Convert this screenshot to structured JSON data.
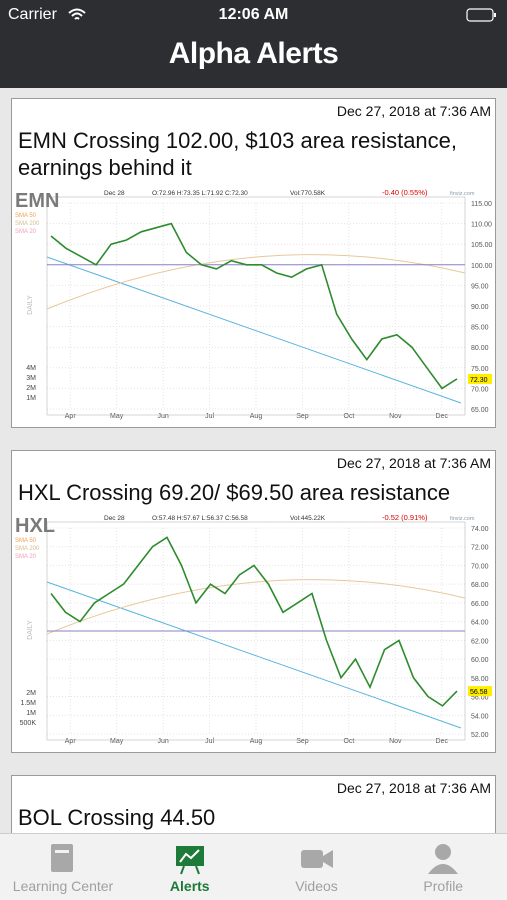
{
  "status_bar": {
    "carrier": "Carrier",
    "time": "12:06 AM"
  },
  "header": {
    "title": "Alpha Alerts"
  },
  "alerts": [
    {
      "date": "Dec 27, 2018 at 7:36 AM",
      "title": "EMN Crossing 102.00, $103 area resistance, earnings behind it",
      "chart": {
        "type": "line",
        "ticker": "EMN",
        "bar_date": "Dec 28",
        "ohlc": "O:72.96 H:73.35 L:71.92 C:72.30",
        "volume": "Vol:770.58K",
        "change": "-0.40 (0.55%)",
        "source": "finviz.com",
        "period": "DAILY",
        "sma_labels": [
          "SMA 50",
          "SMA 200",
          "SMA 20"
        ],
        "months": [
          "Apr",
          "May",
          "Jun",
          "Jul",
          "Aug",
          "Sep",
          "Oct",
          "Nov",
          "Dec"
        ],
        "ylim": [
          65,
          115
        ],
        "yticks": [
          {
            "value": 115,
            "label": "115.00"
          },
          {
            "value": 110,
            "label": "110.00"
          },
          {
            "value": 105,
            "label": "105.00"
          },
          {
            "value": 100,
            "label": "100.00"
          },
          {
            "value": 95,
            "label": "95.00"
          },
          {
            "value": 90,
            "label": "90.00"
          },
          {
            "value": 85,
            "label": "85.00"
          },
          {
            "value": 80,
            "label": "80.00"
          },
          {
            "value": 75,
            "label": "75.00"
          },
          {
            "value": 70,
            "label": "70.00"
          },
          {
            "value": 65,
            "label": "65.00"
          }
        ],
        "volume_ticks": [
          "4M",
          "3M",
          "2M",
          "1M"
        ],
        "level": 100,
        "values": [
          107,
          104,
          102,
          100,
          105,
          106,
          108,
          109,
          110,
          103,
          100,
          99,
          101,
          100,
          100,
          98,
          97,
          99,
          100,
          88,
          82,
          77,
          82,
          83,
          80,
          75,
          70,
          72.3
        ],
        "last_label": "72.30",
        "color": "#2e8b2e"
      }
    },
    {
      "date": "Dec 27, 2018 at 7:36 AM",
      "title": "HXL Crossing 69.20/ $69.50 area resistance",
      "chart": {
        "type": "line",
        "ticker": "HXL",
        "bar_date": "Dec 28",
        "ohlc": "O:57.48 H:57.67 L:56.37 C:56.58",
        "volume": "Vol:445.22K",
        "change": "-0.52 (0.91%)",
        "source": "finviz.com",
        "period": "DAILY",
        "sma_labels": [
          "SMA 50",
          "SMA 200",
          "SMA 20"
        ],
        "months": [
          "Apr",
          "May",
          "Jun",
          "Jul",
          "Aug",
          "Sep",
          "Oct",
          "Nov",
          "Dec"
        ],
        "ylim": [
          52,
          74
        ],
        "yticks": [
          {
            "value": 74,
            "label": "74.00"
          },
          {
            "value": 72,
            "label": "72.00"
          },
          {
            "value": 70,
            "label": "70.00"
          },
          {
            "value": 68,
            "label": "68.00"
          },
          {
            "value": 66,
            "label": "66.00"
          },
          {
            "value": 64,
            "label": "64.00"
          },
          {
            "value": 62,
            "label": "62.00"
          },
          {
            "value": 60,
            "label": "60.00"
          },
          {
            "value": 58,
            "label": "58.00"
          },
          {
            "value": 56,
            "label": "56.00"
          },
          {
            "value": 54,
            "label": "54.00"
          },
          {
            "value": 52,
            "label": "52.00"
          }
        ],
        "volume_ticks": [
          "2M",
          "1.5M",
          "1M",
          "500K"
        ],
        "level": 63,
        "values": [
          67,
          65,
          64,
          66,
          67,
          68,
          70,
          72,
          73,
          70,
          66,
          68,
          67,
          69,
          70,
          68,
          65,
          66,
          67,
          62,
          58,
          60,
          57,
          61,
          62,
          58,
          56,
          55,
          56.58
        ],
        "last_label": "56.58",
        "color": "#2e8b2e"
      }
    },
    {
      "date": "Dec 27, 2018 at 7:36 AM",
      "title": "BOL Crossing 44.50"
    }
  ],
  "tab_bar": {
    "items": [
      "Learning Center",
      "Alerts",
      "Videos",
      "Profile"
    ],
    "active": 1
  }
}
